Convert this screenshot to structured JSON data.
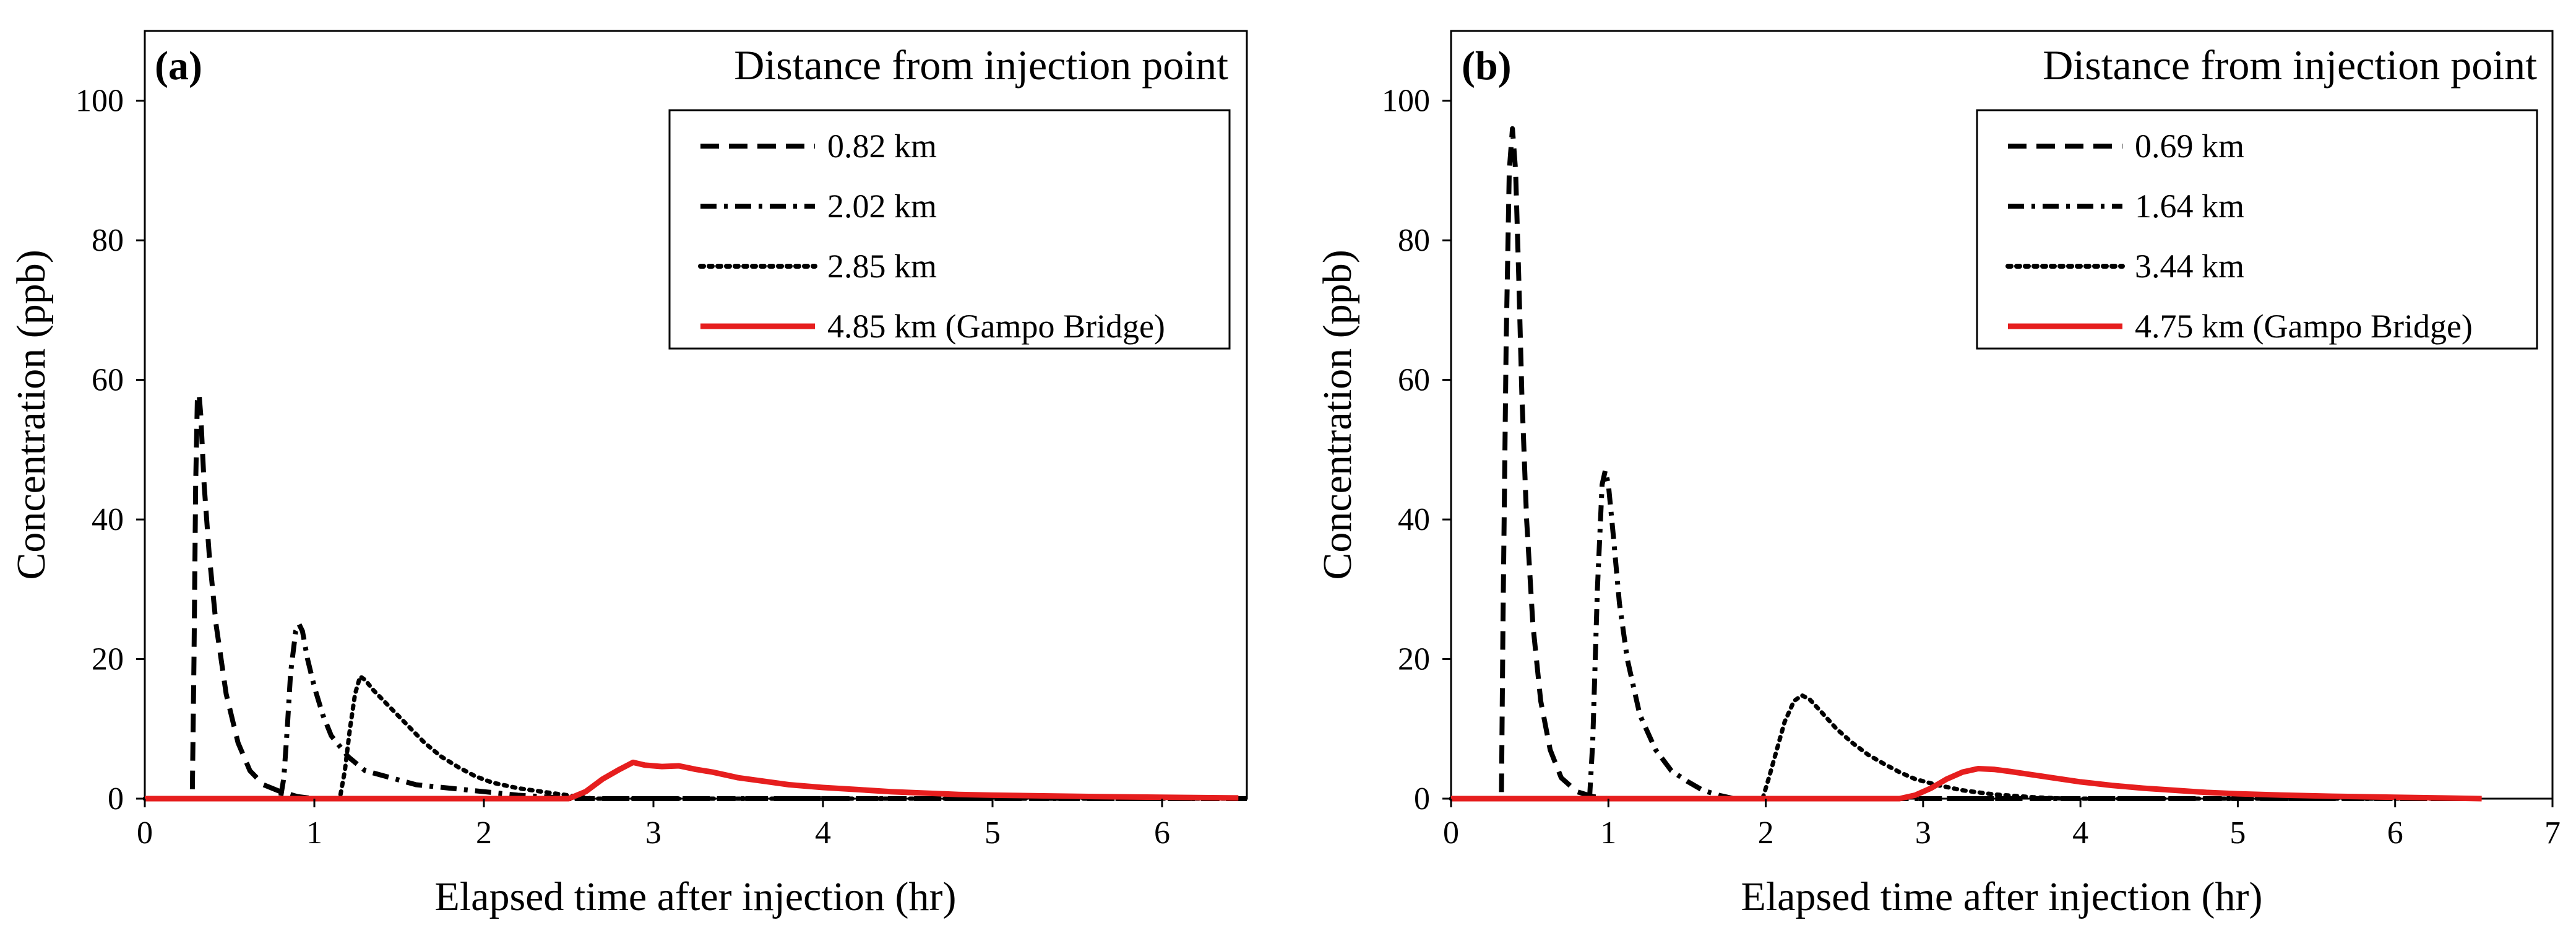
{
  "chart_data": [
    {
      "type": "line",
      "panel_label": "(a)",
      "title": "Distance from injection point",
      "xlabel": "Elapsed time after injection (hr)",
      "ylabel": "Concentration (ppb)",
      "xlim": [
        0,
        6.5
      ],
      "ylim": [
        0,
        110
      ],
      "xticks": [
        "0",
        "1",
        "2",
        "3",
        "4",
        "5",
        "6"
      ],
      "yticks": [
        "0",
        "20",
        "40",
        "60",
        "80",
        "100"
      ],
      "series": [
        {
          "name": "0.82 km",
          "style": "dashed",
          "color": "#000000",
          "points": [
            [
              0.0,
              0
            ],
            [
              0.28,
              0
            ],
            [
              0.29,
              20
            ],
            [
              0.3,
              45
            ],
            [
              0.31,
              57
            ],
            [
              0.32,
              58
            ],
            [
              0.33,
              55
            ],
            [
              0.35,
              45
            ],
            [
              0.38,
              35
            ],
            [
              0.42,
              25
            ],
            [
              0.48,
              15
            ],
            [
              0.55,
              8
            ],
            [
              0.62,
              4
            ],
            [
              0.7,
              2
            ],
            [
              0.8,
              1
            ],
            [
              0.9,
              0.3
            ],
            [
              1.0,
              0
            ],
            [
              6.5,
              0
            ]
          ]
        },
        {
          "name": "2.02 km",
          "style": "dashdot",
          "color": "#000000",
          "points": [
            [
              0.0,
              0
            ],
            [
              0.8,
              0
            ],
            [
              0.82,
              3
            ],
            [
              0.84,
              10
            ],
            [
              0.86,
              18
            ],
            [
              0.89,
              24
            ],
            [
              0.91,
              25
            ],
            [
              0.93,
              24
            ],
            [
              0.96,
              20
            ],
            [
              1.0,
              16
            ],
            [
              1.05,
              12
            ],
            [
              1.1,
              9
            ],
            [
              1.2,
              6
            ],
            [
              1.3,
              4
            ],
            [
              1.45,
              3
            ],
            [
              1.6,
              2
            ],
            [
              1.8,
              1.5
            ],
            [
              2.0,
              1
            ],
            [
              2.2,
              0.5
            ],
            [
              2.4,
              0.2
            ],
            [
              2.5,
              0
            ],
            [
              6.5,
              0
            ]
          ]
        },
        {
          "name": "2.85 km",
          "style": "dotted",
          "color": "#000000",
          "points": [
            [
              0.0,
              0
            ],
            [
              1.15,
              0
            ],
            [
              1.18,
              4
            ],
            [
              1.21,
              10
            ],
            [
              1.24,
              15
            ],
            [
              1.27,
              17.5
            ],
            [
              1.3,
              17
            ],
            [
              1.35,
              15.5
            ],
            [
              1.45,
              13
            ],
            [
              1.55,
              10.5
            ],
            [
              1.65,
              8
            ],
            [
              1.75,
              6
            ],
            [
              1.85,
              4.5
            ],
            [
              1.95,
              3.2
            ],
            [
              2.05,
              2.3
            ],
            [
              2.2,
              1.5
            ],
            [
              2.4,
              0.8
            ],
            [
              2.55,
              0.3
            ],
            [
              2.65,
              0
            ],
            [
              6.5,
              0
            ]
          ]
        },
        {
          "name": "4.85 km (Gampo Bridge)",
          "style": "solid",
          "color": "#e61e1e",
          "points": [
            [
              0.0,
              0
            ],
            [
              2.5,
              0
            ],
            [
              2.6,
              1
            ],
            [
              2.7,
              2.8
            ],
            [
              2.8,
              4.2
            ],
            [
              2.88,
              5.2
            ],
            [
              2.95,
              4.8
            ],
            [
              3.05,
              4.6
            ],
            [
              3.15,
              4.7
            ],
            [
              3.25,
              4.2
            ],
            [
              3.35,
              3.8
            ],
            [
              3.5,
              3.0
            ],
            [
              3.65,
              2.5
            ],
            [
              3.8,
              2.0
            ],
            [
              4.0,
              1.6
            ],
            [
              4.2,
              1.3
            ],
            [
              4.4,
              1.0
            ],
            [
              4.6,
              0.8
            ],
            [
              4.8,
              0.6
            ],
            [
              5.0,
              0.5
            ],
            [
              5.3,
              0.4
            ],
            [
              5.6,
              0.3
            ],
            [
              6.0,
              0.2
            ],
            [
              6.45,
              0.1
            ]
          ]
        }
      ]
    },
    {
      "type": "line",
      "panel_label": "(b)",
      "title": "Distance from injection point",
      "xlabel": "Elapsed time after injection (hr)",
      "ylabel": "Concentration (ppb)",
      "xlim": [
        0,
        7
      ],
      "ylim": [
        0,
        110
      ],
      "xticks": [
        "0",
        "1",
        "2",
        "3",
        "4",
        "5",
        "6",
        "7"
      ],
      "yticks": [
        "0",
        "20",
        "40",
        "60",
        "80",
        "100"
      ],
      "series": [
        {
          "name": "0.69 km",
          "style": "dashed",
          "color": "#000000",
          "points": [
            [
              0.0,
              0
            ],
            [
              0.32,
              0
            ],
            [
              0.33,
              25
            ],
            [
              0.35,
              65
            ],
            [
              0.37,
              90
            ],
            [
              0.39,
              96
            ],
            [
              0.41,
              90
            ],
            [
              0.43,
              75
            ],
            [
              0.45,
              58
            ],
            [
              0.48,
              40
            ],
            [
              0.52,
              25
            ],
            [
              0.57,
              14
            ],
            [
              0.63,
              7
            ],
            [
              0.7,
              3
            ],
            [
              0.8,
              1
            ],
            [
              0.9,
              0.3
            ],
            [
              1.0,
              0
            ],
            [
              6.5,
              0
            ]
          ]
        },
        {
          "name": "1.64 km",
          "style": "dashdot",
          "color": "#000000",
          "points": [
            [
              0.0,
              0
            ],
            [
              0.88,
              0
            ],
            [
              0.9,
              8
            ],
            [
              0.93,
              30
            ],
            [
              0.96,
              45
            ],
            [
              0.98,
              47
            ],
            [
              1.0,
              45
            ],
            [
              1.03,
              38
            ],
            [
              1.07,
              28
            ],
            [
              1.12,
              20
            ],
            [
              1.2,
              12
            ],
            [
              1.3,
              7
            ],
            [
              1.4,
              4
            ],
            [
              1.5,
              2.5
            ],
            [
              1.6,
              1.2
            ],
            [
              1.7,
              0.5
            ],
            [
              1.8,
              0
            ],
            [
              6.5,
              0
            ]
          ]
        },
        {
          "name": "3.44 km",
          "style": "dotted",
          "color": "#000000",
          "points": [
            [
              0.0,
              0
            ],
            [
              1.98,
              0
            ],
            [
              2.02,
              3
            ],
            [
              2.07,
              7
            ],
            [
              2.12,
              11
            ],
            [
              2.18,
              14
            ],
            [
              2.23,
              14.8
            ],
            [
              2.28,
              14.2
            ],
            [
              2.35,
              12.5
            ],
            [
              2.45,
              10
            ],
            [
              2.55,
              8
            ],
            [
              2.65,
              6.3
            ],
            [
              2.75,
              5
            ],
            [
              2.85,
              3.8
            ],
            [
              2.95,
              2.8
            ],
            [
              3.1,
              1.9
            ],
            [
              3.25,
              1.2
            ],
            [
              3.45,
              0.6
            ],
            [
              3.7,
              0.2
            ],
            [
              3.9,
              0
            ],
            [
              6.5,
              0
            ]
          ]
        },
        {
          "name": "4.75 km (Gampo Bridge)",
          "style": "solid",
          "color": "#e61e1e",
          "points": [
            [
              0.0,
              0
            ],
            [
              2.85,
              0
            ],
            [
              2.95,
              0.5
            ],
            [
              3.05,
              1.5
            ],
            [
              3.15,
              2.8
            ],
            [
              3.25,
              3.8
            ],
            [
              3.35,
              4.3
            ],
            [
              3.45,
              4.2
            ],
            [
              3.55,
              3.9
            ],
            [
              3.7,
              3.4
            ],
            [
              3.85,
              2.9
            ],
            [
              4.0,
              2.4
            ],
            [
              4.2,
              1.9
            ],
            [
              4.4,
              1.5
            ],
            [
              4.6,
              1.2
            ],
            [
              4.8,
              0.9
            ],
            [
              5.0,
              0.7
            ],
            [
              5.3,
              0.5
            ],
            [
              5.6,
              0.35
            ],
            [
              6.0,
              0.2
            ],
            [
              6.3,
              0.1
            ],
            [
              6.55,
              0
            ]
          ]
        }
      ]
    }
  ]
}
